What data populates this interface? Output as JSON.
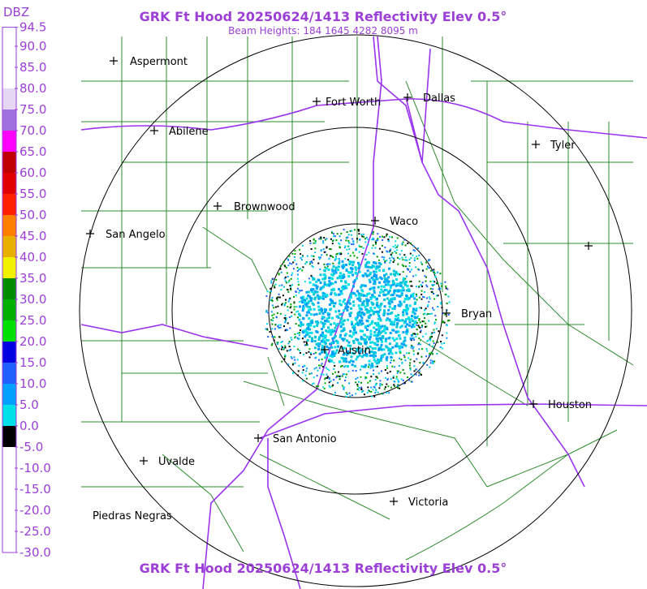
{
  "header": {
    "title": "GRK Ft Hood 20250624/1413 Reflectivity Elev 0.5°",
    "subtitle": "Beam Heights: 184 1645 4282 8095 m"
  },
  "footer": {
    "title": "GRK Ft Hood 20250624/1413 Reflectivity Elev 0.5°"
  },
  "legend": {
    "unit": "DBZ",
    "ticks": [
      {
        "value": 94.5,
        "label": "94.5"
      },
      {
        "value": 90,
        "label": "90.0"
      },
      {
        "value": 85,
        "label": "85.0"
      },
      {
        "value": 80,
        "label": "80.0"
      },
      {
        "value": 75,
        "label": "75.0"
      },
      {
        "value": 70,
        "label": "70.0"
      },
      {
        "value": 65,
        "label": "65.0"
      },
      {
        "value": 60,
        "label": "60.0"
      },
      {
        "value": 55,
        "label": "55.0"
      },
      {
        "value": 50,
        "label": "50.0"
      },
      {
        "value": 45,
        "label": "45.0"
      },
      {
        "value": 40,
        "label": "40.0"
      },
      {
        "value": 35,
        "label": "35.0"
      },
      {
        "value": 30,
        "label": "30.0"
      },
      {
        "value": 25,
        "label": "25.0"
      },
      {
        "value": 20,
        "label": "20.0"
      },
      {
        "value": 15,
        "label": "15.0"
      },
      {
        "value": 10,
        "label": "10.0"
      },
      {
        "value": 5,
        "label": "5.0"
      },
      {
        "value": 0,
        "label": "0.0"
      },
      {
        "value": -5,
        "label": "-5.0"
      },
      {
        "value": -10,
        "label": "-10.0"
      },
      {
        "value": -15,
        "label": "-15.0"
      },
      {
        "value": -20,
        "label": "-20.0"
      },
      {
        "value": -25,
        "label": "-25.0"
      },
      {
        "value": -30,
        "label": "-30.0"
      }
    ]
  },
  "cities": [
    {
      "name": "Aspermont"
    },
    {
      "name": "Fort Worth"
    },
    {
      "name": "Dallas"
    },
    {
      "name": "Abilene"
    },
    {
      "name": "Tyler"
    },
    {
      "name": "Brownwood"
    },
    {
      "name": "Waco"
    },
    {
      "name": "San Angelo"
    },
    {
      "name": "Bryan"
    },
    {
      "name": "Austin"
    },
    {
      "name": "Houston"
    },
    {
      "name": "San Antonio"
    },
    {
      "name": "Uvalde"
    },
    {
      "name": "Victoria"
    },
    {
      "name": "Piedras Negras"
    }
  ]
}
